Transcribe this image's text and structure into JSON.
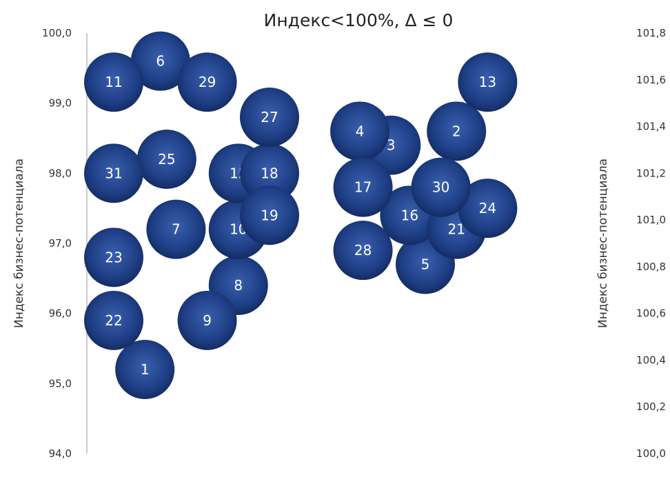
{
  "chart_data": {
    "type": "scatter",
    "title": "Индекс<100%, Δ ≤ 0",
    "ylabel_left": "Индекс бизнес-потенциала",
    "ylabel_right": "Индекс бизнес-потенциала",
    "ylim_left": [
      94.0,
      100.0
    ],
    "ylim_right": [
      100.0,
      101.8
    ],
    "yticks_left": [
      "94,0",
      "95,0",
      "96,0",
      "97,0",
      "98,0",
      "99,0",
      "100,0"
    ],
    "yticks_right": [
      "100,0",
      "100,2",
      "100,4",
      "100,6",
      "100,8",
      "101,0",
      "101,2",
      "101,4",
      "101,6",
      "101,8"
    ],
    "grid": false,
    "bubble_color": "#1f3f86",
    "points": [
      {
        "label": "1",
        "col": 1.0,
        "y": 95.2
      },
      {
        "label": "2",
        "col": 11.0,
        "y": 98.6
      },
      {
        "label": "3",
        "col": 8.9,
        "y": 98.4
      },
      {
        "label": "4",
        "col": 7.9,
        "y": 98.6
      },
      {
        "label": "5",
        "col": 10.0,
        "y": 96.7
      },
      {
        "label": "6",
        "col": 1.5,
        "y": 99.6
      },
      {
        "label": "7",
        "col": 2.0,
        "y": 97.2
      },
      {
        "label": "8",
        "col": 4.0,
        "y": 96.4
      },
      {
        "label": "9",
        "col": 3.0,
        "y": 95.9
      },
      {
        "label": "10",
        "col": 4.0,
        "y": 97.2
      },
      {
        "label": "11",
        "col": 0.0,
        "y": 99.3
      },
      {
        "label": "13",
        "col": 12.0,
        "y": 99.3
      },
      {
        "label": "15",
        "col": 4.0,
        "y": 98.0
      },
      {
        "label": "16",
        "col": 9.5,
        "y": 97.4
      },
      {
        "label": "17",
        "col": 8.0,
        "y": 97.8
      },
      {
        "label": "18",
        "col": 5.0,
        "y": 98.0
      },
      {
        "label": "19",
        "col": 5.0,
        "y": 97.4
      },
      {
        "label": "21",
        "col": 11.0,
        "y": 97.2
      },
      {
        "label": "22",
        "col": 0.0,
        "y": 95.9
      },
      {
        "label": "23",
        "col": 0.0,
        "y": 96.8
      },
      {
        "label": "24",
        "col": 12.0,
        "y": 97.5
      },
      {
        "label": "25",
        "col": 1.7,
        "y": 98.2
      },
      {
        "label": "27",
        "col": 5.0,
        "y": 98.8
      },
      {
        "label": "28",
        "col": 8.0,
        "y": 96.9
      },
      {
        "label": "29",
        "col": 3.0,
        "y": 99.3
      },
      {
        "label": "30",
        "col": 10.5,
        "y": 97.8
      },
      {
        "label": "31",
        "col": 0.0,
        "y": 98.0
      }
    ]
  }
}
